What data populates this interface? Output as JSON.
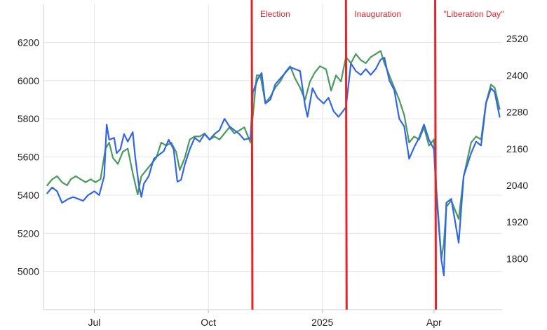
{
  "chart_data": {
    "type": "line",
    "title": "",
    "xlabel": "",
    "ylabel": "",
    "ylabel_right": "",
    "grid": true,
    "colors": {
      "series1": "#3366e6",
      "series2": "#4a9a5e",
      "event": "#e0262b",
      "grid": "#e6e6e6"
    },
    "x_ticks": [
      "Jul",
      "Oct",
      "2025",
      "Apr"
    ],
    "y_left": {
      "min": 4800,
      "max": 6400,
      "ticks": [
        5000,
        5200,
        5400,
        5600,
        5800,
        6000,
        6200
      ]
    },
    "y_right": {
      "min": 1633,
      "max": 2633,
      "ticks": [
        1800,
        1920,
        2040,
        2160,
        2280,
        2400,
        2520
      ]
    },
    "annotations": [
      {
        "label": "Election",
        "date": "2024-11-05"
      },
      {
        "label": "Inauguration",
        "date": "2025-01-20"
      },
      {
        "label": "\"Liberation Day\"",
        "date": "2025-04-02"
      }
    ],
    "series": [
      {
        "axis": "left",
        "color": "#3366e6",
        "points": [
          [
            "2024-05-24",
            5410
          ],
          [
            "2024-05-28",
            5440
          ],
          [
            "2024-06-01",
            5420
          ],
          [
            "2024-06-05",
            5360
          ],
          [
            "2024-06-10",
            5380
          ],
          [
            "2024-06-14",
            5390
          ],
          [
            "2024-06-18",
            5380
          ],
          [
            "2024-06-22",
            5370
          ],
          [
            "2024-06-26",
            5400
          ],
          [
            "2024-07-01",
            5420
          ],
          [
            "2024-07-05",
            5400
          ],
          [
            "2024-07-09",
            5500
          ],
          [
            "2024-07-11",
            5770
          ],
          [
            "2024-07-13",
            5690
          ],
          [
            "2024-07-17",
            5700
          ],
          [
            "2024-07-19",
            5620
          ],
          [
            "2024-07-22",
            5640
          ],
          [
            "2024-07-25",
            5720
          ],
          [
            "2024-07-28",
            5680
          ],
          [
            "2024-08-01",
            5730
          ],
          [
            "2024-08-03",
            5600
          ],
          [
            "2024-08-06",
            5450
          ],
          [
            "2024-08-08",
            5390
          ],
          [
            "2024-08-10",
            5460
          ],
          [
            "2024-08-14",
            5500
          ],
          [
            "2024-08-18",
            5590
          ],
          [
            "2024-08-22",
            5610
          ],
          [
            "2024-08-26",
            5630
          ],
          [
            "2024-08-30",
            5690
          ],
          [
            "2024-09-03",
            5640
          ],
          [
            "2024-09-06",
            5470
          ],
          [
            "2024-09-09",
            5480
          ],
          [
            "2024-09-12",
            5560
          ],
          [
            "2024-09-16",
            5640
          ],
          [
            "2024-09-20",
            5700
          ],
          [
            "2024-09-24",
            5680
          ],
          [
            "2024-09-28",
            5720
          ],
          [
            "2024-10-02",
            5690
          ],
          [
            "2024-10-06",
            5720
          ],
          [
            "2024-10-10",
            5740
          ],
          [
            "2024-10-14",
            5800
          ],
          [
            "2024-10-18",
            5760
          ],
          [
            "2024-10-22",
            5740
          ],
          [
            "2024-10-26",
            5720
          ],
          [
            "2024-10-30",
            5690
          ],
          [
            "2024-11-04",
            5700
          ],
          [
            "2024-11-06",
            5940
          ],
          [
            "2024-11-10",
            6010
          ],
          [
            "2024-11-13",
            6040
          ],
          [
            "2024-11-16",
            5880
          ],
          [
            "2024-11-20",
            5900
          ],
          [
            "2024-11-24",
            5980
          ],
          [
            "2024-11-28",
            6010
          ],
          [
            "2024-12-02",
            6040
          ],
          [
            "2024-12-06",
            6070
          ],
          [
            "2024-12-10",
            6060
          ],
          [
            "2024-12-14",
            6050
          ],
          [
            "2024-12-18",
            5870
          ],
          [
            "2024-12-20",
            5810
          ],
          [
            "2024-12-24",
            5960
          ],
          [
            "2024-12-28",
            5910
          ],
          [
            "2025-01-02",
            5880
          ],
          [
            "2025-01-06",
            5910
          ],
          [
            "2025-01-10",
            5840
          ],
          [
            "2025-01-14",
            5810
          ],
          [
            "2025-01-20",
            5860
          ],
          [
            "2025-01-24",
            6090
          ],
          [
            "2025-01-28",
            6050
          ],
          [
            "2025-02-01",
            6030
          ],
          [
            "2025-02-05",
            6060
          ],
          [
            "2025-02-09",
            6030
          ],
          [
            "2025-02-13",
            6060
          ],
          [
            "2025-02-17",
            6110
          ],
          [
            "2025-02-20",
            6120
          ],
          [
            "2025-02-24",
            6000
          ],
          [
            "2025-02-28",
            5950
          ],
          [
            "2025-03-04",
            5800
          ],
          [
            "2025-03-08",
            5760
          ],
          [
            "2025-03-12",
            5590
          ],
          [
            "2025-03-16",
            5650
          ],
          [
            "2025-03-20",
            5700
          ],
          [
            "2025-03-24",
            5770
          ],
          [
            "2025-03-28",
            5690
          ],
          [
            "2025-04-01",
            5640
          ],
          [
            "2025-04-03",
            5400
          ],
          [
            "2025-04-07",
            5060
          ],
          [
            "2025-04-09",
            4980
          ],
          [
            "2025-04-11",
            5360
          ],
          [
            "2025-04-15",
            5380
          ],
          [
            "2025-04-21",
            5150
          ],
          [
            "2025-04-25",
            5500
          ],
          [
            "2025-05-01",
            5620
          ],
          [
            "2025-05-05",
            5680
          ],
          [
            "2025-05-09",
            5660
          ],
          [
            "2025-05-13",
            5880
          ],
          [
            "2025-05-17",
            5960
          ],
          [
            "2025-05-20",
            5940
          ],
          [
            "2025-05-24",
            5810
          ]
        ]
      },
      {
        "axis": "right",
        "color": "#4a9a5e",
        "points": [
          [
            "2024-05-24",
            2040
          ],
          [
            "2024-05-28",
            2060
          ],
          [
            "2024-06-01",
            2070
          ],
          [
            "2024-06-05",
            2050
          ],
          [
            "2024-06-09",
            2040
          ],
          [
            "2024-06-12",
            2060
          ],
          [
            "2024-06-16",
            2070
          ],
          [
            "2024-06-20",
            2060
          ],
          [
            "2024-06-24",
            2050
          ],
          [
            "2024-06-28",
            2060
          ],
          [
            "2024-07-02",
            2050
          ],
          [
            "2024-07-06",
            2060
          ],
          [
            "2024-07-10",
            2160
          ],
          [
            "2024-07-13",
            2180
          ],
          [
            "2024-07-16",
            2130
          ],
          [
            "2024-07-20",
            2110
          ],
          [
            "2024-07-24",
            2150
          ],
          [
            "2024-07-28",
            2160
          ],
          [
            "2024-08-01",
            2080
          ],
          [
            "2024-08-05",
            2010
          ],
          [
            "2024-08-08",
            2070
          ],
          [
            "2024-08-12",
            2090
          ],
          [
            "2024-08-16",
            2110
          ],
          [
            "2024-08-20",
            2130
          ],
          [
            "2024-08-24",
            2180
          ],
          [
            "2024-08-28",
            2170
          ],
          [
            "2024-09-01",
            2180
          ],
          [
            "2024-09-05",
            2150
          ],
          [
            "2024-09-08",
            2090
          ],
          [
            "2024-09-12",
            2130
          ],
          [
            "2024-09-16",
            2190
          ],
          [
            "2024-09-20",
            2200
          ],
          [
            "2024-09-24",
            2200
          ],
          [
            "2024-09-28",
            2210
          ],
          [
            "2024-10-02",
            2190
          ],
          [
            "2024-10-06",
            2200
          ],
          [
            "2024-10-10",
            2190
          ],
          [
            "2024-10-14",
            2210
          ],
          [
            "2024-10-18",
            2230
          ],
          [
            "2024-10-22",
            2210
          ],
          [
            "2024-10-26",
            2220
          ],
          [
            "2024-10-30",
            2230
          ],
          [
            "2024-11-04",
            2180
          ],
          [
            "2024-11-06",
            2270
          ],
          [
            "2024-11-09",
            2400
          ],
          [
            "2024-11-12",
            2400
          ],
          [
            "2024-11-16",
            2310
          ],
          [
            "2024-11-20",
            2330
          ],
          [
            "2024-11-24",
            2360
          ],
          [
            "2024-11-28",
            2380
          ],
          [
            "2024-12-02",
            2410
          ],
          [
            "2024-12-06",
            2430
          ],
          [
            "2024-12-10",
            2390
          ],
          [
            "2024-12-14",
            2360
          ],
          [
            "2024-12-18",
            2320
          ],
          [
            "2024-12-22",
            2380
          ],
          [
            "2024-12-26",
            2410
          ],
          [
            "2024-12-30",
            2430
          ],
          [
            "2025-01-04",
            2420
          ],
          [
            "2025-01-08",
            2350
          ],
          [
            "2025-01-12",
            2400
          ],
          [
            "2025-01-16",
            2380
          ],
          [
            "2025-01-20",
            2460
          ],
          [
            "2025-01-24",
            2440
          ],
          [
            "2025-01-28",
            2470
          ],
          [
            "2025-02-01",
            2450
          ],
          [
            "2025-02-05",
            2440
          ],
          [
            "2025-02-09",
            2460
          ],
          [
            "2025-02-13",
            2470
          ],
          [
            "2025-02-17",
            2480
          ],
          [
            "2025-02-20",
            2440
          ],
          [
            "2025-02-24",
            2400
          ],
          [
            "2025-02-28",
            2360
          ],
          [
            "2025-03-04",
            2320
          ],
          [
            "2025-03-08",
            2270
          ],
          [
            "2025-03-12",
            2180
          ],
          [
            "2025-03-16",
            2200
          ],
          [
            "2025-03-20",
            2190
          ],
          [
            "2025-03-24",
            2230
          ],
          [
            "2025-03-28",
            2170
          ],
          [
            "2025-04-01",
            2190
          ],
          [
            "2025-04-03",
            2030
          ],
          [
            "2025-04-07",
            1800
          ],
          [
            "2025-04-09",
            1850
          ],
          [
            "2025-04-11",
            1970
          ],
          [
            "2025-04-15",
            1990
          ],
          [
            "2025-04-21",
            1930
          ],
          [
            "2025-04-25",
            2070
          ],
          [
            "2025-05-01",
            2180
          ],
          [
            "2025-05-05",
            2200
          ],
          [
            "2025-05-09",
            2190
          ],
          [
            "2025-05-13",
            2310
          ],
          [
            "2025-05-17",
            2370
          ],
          [
            "2025-05-20",
            2360
          ],
          [
            "2025-05-24",
            2290
          ]
        ]
      }
    ]
  }
}
